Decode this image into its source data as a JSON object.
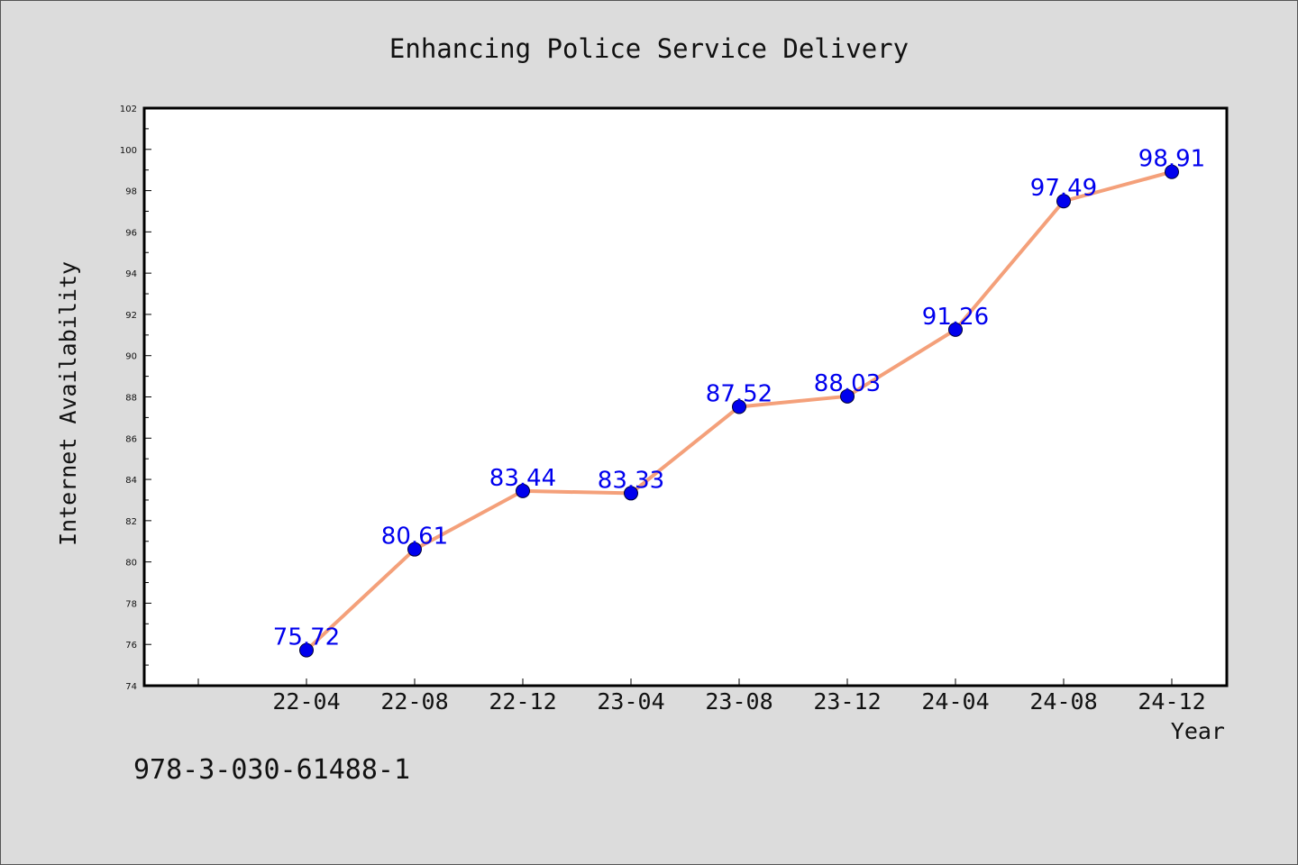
{
  "chart_data": {
    "type": "line",
    "title": "Enhancing Police Service Delivery",
    "xlabel": "Year",
    "ylabel": "Internet Availability",
    "categories": [
      "22-04",
      "22-08",
      "22-12",
      "23-04",
      "23-08",
      "23-12",
      "24-04",
      "24-08",
      "24-12"
    ],
    "series": [
      {
        "values": [
          75.72,
          80.61,
          83.44,
          83.33,
          87.52,
          88.03,
          91.26,
          97.49,
          98.91
        ]
      }
    ],
    "ylim": [
      74,
      102
    ],
    "yticks": [
      "74",
      "76",
      "78",
      "80",
      "82",
      "84",
      "86",
      "88",
      "90",
      "92",
      "94",
      "96",
      "98",
      "100",
      "102"
    ],
    "data_labels": [
      "75.72",
      "80.61",
      "83.44",
      "83.33",
      "87.52",
      "88.03",
      "91.26",
      "97.49",
      "98.91"
    ],
    "grid": false,
    "line_color": "#f4a07a",
    "marker_color": "#0000ee",
    "label_color": "#0000ee"
  },
  "footnote": "978-3-030-61488-1"
}
